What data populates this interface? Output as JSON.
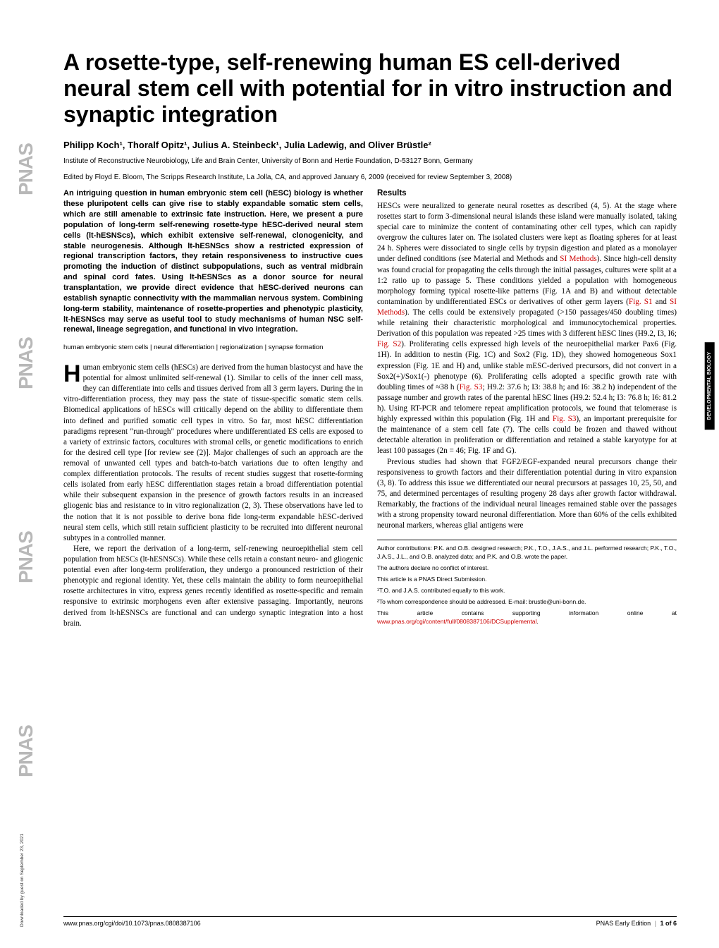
{
  "strip": {
    "text": "PNAS"
  },
  "title": "A rosette-type, self-renewing human ES cell-derived neural stem cell with potential for in vitro instruction and synaptic integration",
  "authors": "Philipp Koch¹, Thoralf Opitz¹, Julius A. Steinbeck¹, Julia Ladewig, and Oliver Brüstle²",
  "affiliation": "Institute of Reconstructive Neurobiology, Life and Brain Center, University of Bonn and Hertie Foundation, D-53127 Bonn, Germany",
  "edited": "Edited by Floyd E. Bloom, The Scripps Research Institute, La Jolla, CA, and approved January 6, 2009 (received for review September 3, 2008)",
  "abstract": "An intriguing question in human embryonic stem cell (hESC) biology is whether these pluripotent cells can give rise to stably expandable somatic stem cells, which are still amenable to extrinsic fate instruction. Here, we present a pure population of long-term self-renewing rosette-type hESC-derived neural stem cells (lt-hESNScs), which exhibit extensive self-renewal, clonogenicity, and stable neurogenesis. Although lt-hESNScs show a restricted expression of regional transcription factors, they retain responsiveness to instructive cues promoting the induction of distinct subpopulations, such as ventral midbrain and spinal cord fates. Using lt-hESNScs as a donor source for neural transplantation, we provide direct evidence that hESC-derived neurons can establish synaptic connectivity with the mammalian nervous system. Combining long-term stability, maintenance of rosette-properties and phenotypic plasticity, lt-hESNScs may serve as useful tool to study mechanisms of human NSC self-renewal, lineage segregation, and functional in vivo integration.",
  "keywords": "human embryonic stem cells | neural differentiation | regionalization | synapse formation",
  "intro_first_letter": "H",
  "intro_p1": "uman embryonic stem cells (hESCs) are derived from the human blastocyst and have the potential for almost unlimited self-renewal (1). Similar to cells of the inner cell mass, they can differentiate into cells and tissues derived from all 3 germ layers. During the in vitro-differentiation process, they may pass the state of tissue-specific somatic stem cells. Biomedical applications of hESCs will critically depend on the ability to differentiate them into defined and purified somatic cell types in vitro. So far, most hESC differentiation paradigms represent \"run-through\" procedures where undifferentiated ES cells are exposed to a variety of extrinsic factors, cocultures with stromal cells, or genetic modifications to enrich for the desired cell type [for review see (2)]. Major challenges of such an approach are the removal of unwanted cell types and batch-to-batch variations due to often lengthy and complex differentiation protocols. The results of recent studies suggest that rosette-forming cells isolated from early hESC differentiation stages retain a broad differentiation potential while their subsequent expansion in the presence of growth factors results in an increased gliogenic bias and resistance to in vitro regionalization (2, 3). These observations have led to the notion that it is not possible to derive bona fide long-term expandable hESC-derived neural stem cells, which still retain sufficient plasticity to be recruited into different neuronal subtypes in a controlled manner.",
  "intro_p2": "Here, we report the derivation of a long-term, self-renewing neuroepithelial stem cell population from hESCs (lt-hESNSCs). While these cells retain a constant neuro- and gliogenic potential even after long-term proliferation, they undergo a pronounced restriction of their phenotypic and regional identity. Yet, these cells maintain the ability to form neuroepithelial rosette architectures in vitro, express genes recently identified as rosette-specific and remain responsive to extrinsic morphogens even after extensive passaging. Importantly, neurons derived from lt-hESNSCs are functional and can undergo synaptic integration into a host brain.",
  "results_head": "Results",
  "results_p1a": "HESCs were neuralized to generate neural rosettes as described (4, 5). At the stage where rosettes start to form 3-dimensional neural islands these island were manually isolated, taking special care to minimize the content of contaminating other cell types, which can rapidly overgrow the cultures later on. The isolated clusters were kept as floating spheres for at least 24 h. Spheres were dissociated to single cells by trypsin digestion and plated as a monolayer under defined conditions (see Material and Methods and ",
  "results_link1": "SI Methods",
  "results_p1b": "). Since high-cell density was found crucial for propagating the cells through the initial passages, cultures were split at a 1:2 ratio up to passage 5. These conditions yielded a population with homogeneous morphology forming typical rosette-like patterns (Fig. 1A and B) and without detectable contamination by undifferentiated ESCs or derivatives of other germ layers (",
  "results_link2": "Fig. S1",
  "results_p1c": " and ",
  "results_link3": "SI Methods",
  "results_p1d": "). The cells could be extensively propagated (>150 passages/450 doubling times) while retaining their characteristic morphological and immunocytochemical properties. Derivation of this population was repeated >25 times with 3 different hESC lines (H9.2, I3, I6; ",
  "results_link4": "Fig. S2",
  "results_p1e": "). Proliferating cells expressed high levels of the neuroepithelial marker Pax6 (Fig. 1H). In addition to nestin (Fig. 1C) and Sox2 (Fig. 1D), they showed homogeneous Sox1 expression (Fig. 1E and H) and, unlike stable mESC-derived precursors, did not convert in a Sox2(+)/Sox1(-) phenotype (6). Proliferating cells adopted a specific growth rate with doubling times of ≈38 h (",
  "results_link5": "Fig. S3",
  "results_p1f": "; H9.2: 37.6 h; I3: 38.8 h; and I6: 38.2 h) independent of the passage number and growth rates of the parental hESC lines (H9.2: 52.4 h; I3: 76.8 h; I6: 81.2 h). Using RT-PCR and telomere repeat amplification protocols, we found that telomerase is highly expressed within this population (Fig. 1H and ",
  "results_link6": "Fig. S3",
  "results_p1g": "), an important prerequisite for the maintenance of a stem cell fate (7). The cells could be frozen and thawed without detectable alteration in proliferation or differentiation and retained a stable karyotype for at least 100 passages (2n = 46; Fig. 1F and G).",
  "results_p2": "Previous studies had shown that FGF2/EGF-expanded neural precursors change their responsiveness to growth factors and their differentiation potential during in vitro expansion (3, 8). To address this issue we differentiated our neural precursors at passages 10, 25, 50, and 75, and determined percentages of resulting progeny 28 days after growth factor withdrawal. Remarkably, the fractions of the individual neural lineages remained stable over the passages with a strong propensity toward neuronal differentiation. More than 60% of the cells exhibited neuronal markers, whereas glial antigens were",
  "footnotes": {
    "contrib": "Author contributions: P.K. and O.B. designed research; P.K., T.O., J.A.S., and J.L. performed research; P.K., T.O., J.A.S., J.L., and O.B. analyzed data; and P.K. and O.B. wrote the paper.",
    "conflict": "The authors declare no conflict of interest.",
    "direct": "This article is a PNAS Direct Submission.",
    "note1": "¹T.O. and J.A.S. contributed equally to this work.",
    "note2": "²To whom correspondence should be addressed. E-mail: brustle@uni-bonn.de.",
    "suppl_a": "This article contains supporting information online at ",
    "suppl_link": "www.pnas.org/cgi/content/full/0808387106/DCSupplemental",
    "suppl_b": "."
  },
  "sidelabel": "DEVELOPMENTAL BIOLOGY",
  "footer": {
    "left": "www.pnas.org/cgi/doi/10.1073/pnas.0808387106",
    "right_a": "PNAS Early Edition",
    "right_b": "1 of 6"
  },
  "download": "Downloaded by guest on September 23, 2021",
  "colors": {
    "link": "#cc0000",
    "strip": "#b8b8b8",
    "text": "#000000",
    "bg": "#ffffff"
  },
  "fonts": {
    "title_size": 32,
    "author_size": 13,
    "body_size": 11.2,
    "abstract_size": 11,
    "footnote_size": 8.5
  }
}
